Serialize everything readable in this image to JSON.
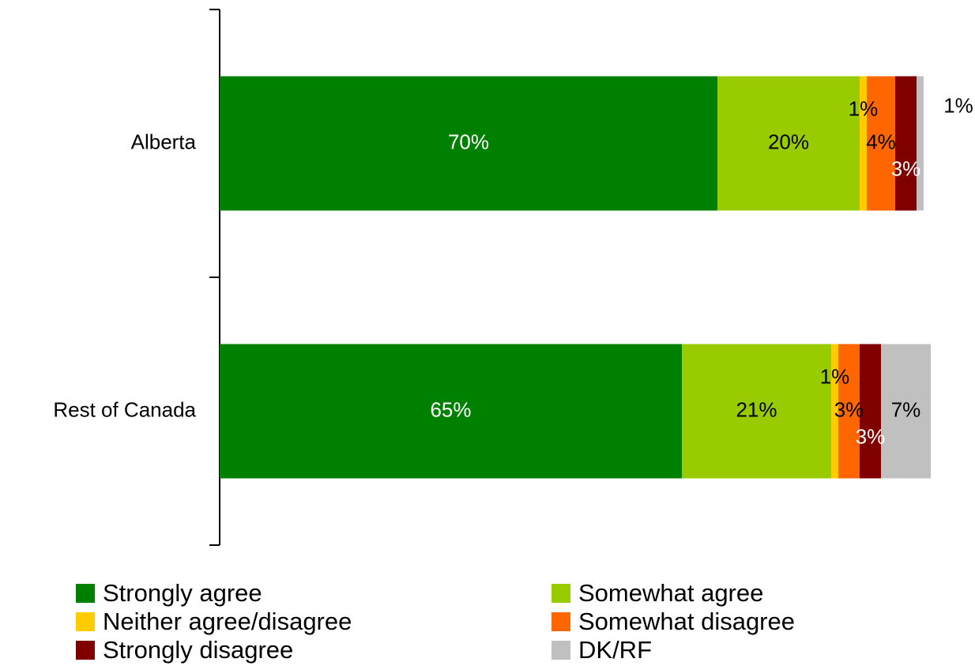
{
  "chart_data": {
    "type": "bar",
    "orientation": "horizontal",
    "stacked": true,
    "title": "",
    "xlabel": "",
    "ylabel": "",
    "xlim": [
      0,
      100
    ],
    "grid": false,
    "legend_position": "bottom",
    "categories": [
      "Alberta",
      "Rest of Canada"
    ],
    "series": [
      {
        "name": "Strongly agree",
        "color": "#008000",
        "values": [
          70,
          65
        ],
        "labels": [
          "70%",
          "65%"
        ]
      },
      {
        "name": "Somewhat agree",
        "color": "#99CC00",
        "values": [
          20,
          21
        ],
        "labels": [
          "20%",
          "21%"
        ]
      },
      {
        "name": "Neither agree/disagree",
        "color": "#FFCC00",
        "values": [
          1,
          1
        ],
        "labels": [
          "1%",
          "1%"
        ]
      },
      {
        "name": "Somewhat disagree",
        "color": "#FF6600",
        "values": [
          4,
          3
        ],
        "labels": [
          "4%",
          "3%"
        ]
      },
      {
        "name": "Strongly disagree",
        "color": "#800000",
        "values": [
          3,
          3
        ],
        "labels": [
          "3%",
          "3%"
        ]
      },
      {
        "name": "DK/RF",
        "color": "#C0C0C0",
        "values": [
          1,
          7
        ],
        "labels": [
          "1%",
          "7%"
        ]
      }
    ]
  }
}
